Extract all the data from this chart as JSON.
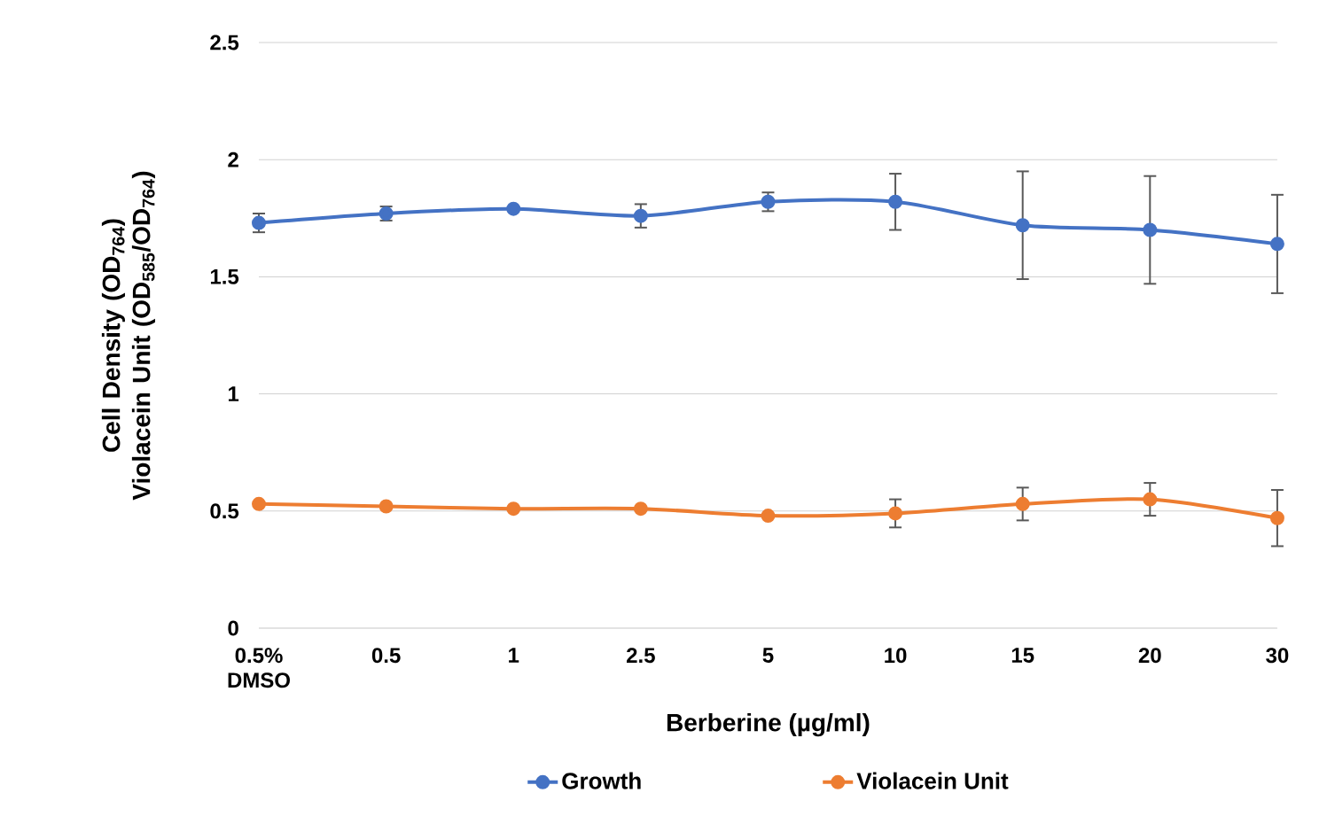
{
  "chart_data": {
    "type": "line",
    "xlabel": "Berberine (µg/ml)",
    "ylabel": "Cell Density (OD$_{764}$) Violacein Unit (OD$_{585}$/OD$_{764}$)",
    "categories": [
      "0.5% DMSO",
      "0.5",
      "1",
      "2.5",
      "5",
      "10",
      "15",
      "20",
      "30"
    ],
    "series": [
      {
        "name": "Growth",
        "color": "#4472c4",
        "values": [
          1.73,
          1.77,
          1.79,
          1.76,
          1.82,
          1.82,
          1.72,
          1.7,
          1.64
        ],
        "errors": [
          0.04,
          0.03,
          null,
          0.05,
          0.04,
          0.12,
          0.23,
          0.23,
          0.21
        ]
      },
      {
        "name": "Violacein Unit",
        "color": "#ed7d31",
        "values": [
          0.53,
          0.52,
          0.51,
          0.51,
          0.48,
          0.49,
          0.53,
          0.55,
          0.47
        ],
        "errors": [
          null,
          null,
          null,
          null,
          null,
          0.06,
          0.07,
          0.07,
          0.12
        ]
      }
    ],
    "ylim": [
      0,
      2.5
    ],
    "yticks": [
      0,
      0.5,
      1,
      1.5,
      2,
      2.5
    ],
    "grid": "y",
    "legend": "bottom",
    "marker": "circle",
    "line_style": "solid"
  }
}
